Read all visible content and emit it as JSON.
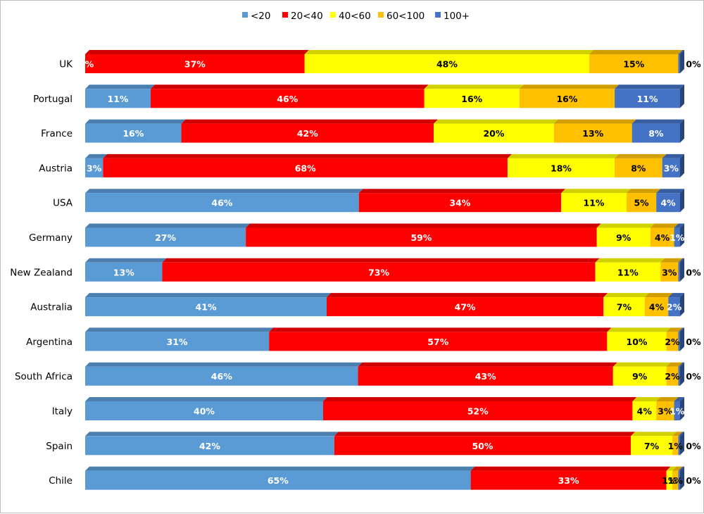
{
  "chart_data": {
    "type": "bar",
    "orientation": "horizontal",
    "stacked": "percent",
    "style": "3d",
    "legend_position": "top",
    "categories": [
      "UK",
      "Portugal",
      "France",
      "Austria",
      "USA",
      "Germany",
      "New Zealand",
      "Australia",
      "Argentina",
      "South Africa",
      "Italy",
      "Spain",
      "Chile"
    ],
    "series": [
      {
        "name": "<20",
        "color": "#5b9bd5",
        "label_color": "#ffffff",
        "values": [
          0,
          11,
          16,
          3,
          46,
          27,
          13,
          41,
          31,
          46,
          40,
          42,
          65
        ],
        "labels": [
          "%",
          "11%",
          "16%",
          "3%",
          "46%",
          "27%",
          "13%",
          "41%",
          "31%",
          "46%",
          "40%",
          "42%",
          "65%"
        ]
      },
      {
        "name": "20<40",
        "color": "#ff0000",
        "label_color": "#ffffff",
        "values": [
          37,
          46,
          42,
          68,
          34,
          59,
          73,
          47,
          57,
          43,
          52,
          50,
          33
        ],
        "labels": [
          "37%",
          "46%",
          "42%",
          "68%",
          "34%",
          "59%",
          "73%",
          "47%",
          "57%",
          "43%",
          "52%",
          "50%",
          "33%"
        ]
      },
      {
        "name": "40<60",
        "color": "#ffff00",
        "label_color": "#000000",
        "values": [
          48,
          16,
          20,
          18,
          11,
          9,
          11,
          7,
          10,
          9,
          4,
          7,
          1
        ],
        "labels": [
          "48%",
          "16%",
          "20%",
          "18%",
          "11%",
          "9%",
          "11%",
          "7%",
          "10%",
          "9%",
          "4%",
          "7%",
          "1%"
        ]
      },
      {
        "name": "60<100",
        "color": "#ffc000",
        "label_color": "#000000",
        "values": [
          15,
          16,
          13,
          8,
          5,
          4,
          3,
          4,
          2,
          2,
          3,
          1,
          1
        ],
        "labels": [
          "15%",
          "16%",
          "13%",
          "8%",
          "5%",
          "4%",
          "3%",
          "4%",
          "2%",
          "2%",
          "3%",
          "1%",
          "1%"
        ]
      },
      {
        "name": "100+",
        "color": "#4472c4",
        "label_color": "#ffffff",
        "values": [
          0.3,
          11,
          8,
          3,
          4,
          1,
          0.3,
          2,
          0.3,
          0.3,
          1,
          0.3,
          0.3
        ],
        "labels": [
          "0%",
          "11%",
          "8%",
          "3%",
          "4%",
          "1%",
          "0%",
          "2%",
          "0%",
          "0%",
          "1%",
          "0%",
          "0%"
        ]
      }
    ],
    "xlim": [
      0,
      100
    ],
    "title": "",
    "xlabel": "",
    "ylabel": ""
  }
}
